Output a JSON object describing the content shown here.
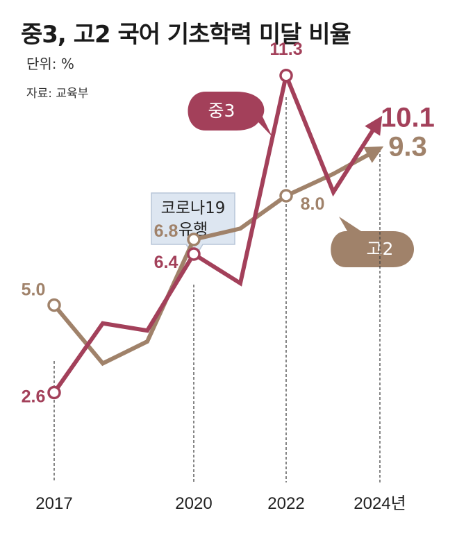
{
  "header": {
    "title": "중3, 고2 국어 기초학력 미달 비율",
    "unit": "단위: %",
    "source": "자료: 교육부"
  },
  "annotation": {
    "line1": "코로나19",
    "line2": "유행"
  },
  "colors": {
    "middle3": "#a3405a",
    "high2": "#a0826a",
    "callout_bg": "#dde6f1"
  },
  "chart_data": {
    "type": "line",
    "title": "중3, 고2 국어 기초학력 미달 비율",
    "unit": "%",
    "x": [
      2017,
      2018,
      2019,
      2020,
      2021,
      2022,
      2023,
      2024
    ],
    "x_tick_labels": [
      "2017",
      "2020",
      "2022",
      "2024년"
    ],
    "ylim": [
      0,
      12
    ],
    "grid": false,
    "series": [
      {
        "name": "중3",
        "values": [
          2.6,
          4.5,
          4.3,
          6.4,
          5.6,
          11.3,
          8.1,
          10.1
        ],
        "labels": [
          "2.6",
          "6.4",
          "11.3",
          "10.1"
        ]
      },
      {
        "name": "고2",
        "values": [
          5.0,
          3.4,
          4.0,
          6.8,
          7.1,
          8.0,
          8.6,
          9.3
        ],
        "labels": [
          "5.0",
          "6.8",
          "8.0",
          "9.3"
        ]
      }
    ]
  }
}
